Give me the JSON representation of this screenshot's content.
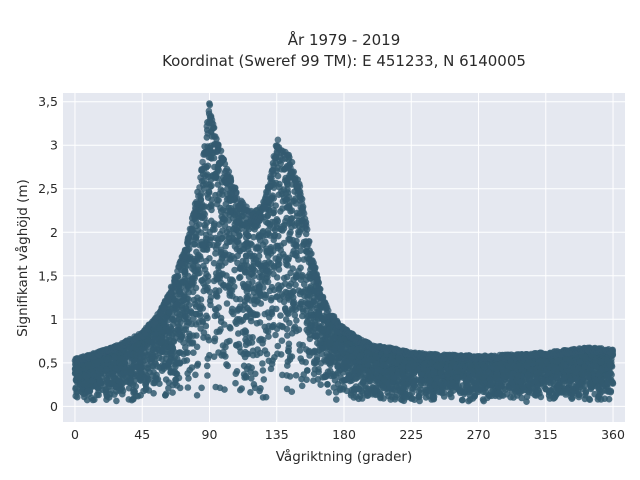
{
  "chart_data": {
    "type": "scatter",
    "title_line1": "År 1979 - 2019",
    "title_line2": "Koordinat (Sweref 99 TM): E 451233, N 6140005",
    "xlabel": "Vågriktning (grader)",
    "ylabel": "Signifikant våghöjd (m)",
    "xlim": [
      -8,
      368
    ],
    "ylim": [
      -0.18,
      3.6
    ],
    "x_ticks": [
      0,
      45,
      90,
      135,
      180,
      225,
      270,
      315,
      360
    ],
    "x_tick_labels": [
      "0",
      "45",
      "90",
      "135",
      "180",
      "225",
      "270",
      "315",
      "360"
    ],
    "y_ticks": [
      0,
      0.5,
      1,
      1.5,
      2,
      2.5,
      3,
      3.5
    ],
    "y_tick_labels": [
      "0",
      "0,5",
      "1",
      "1,5",
      "2",
      "2,5",
      "3",
      "3,5"
    ],
    "grid": true,
    "background_color": "#e5e8f0",
    "point_color": "#335a70",
    "envelope": {
      "direction": [
        0,
        15,
        30,
        45,
        55,
        60,
        65,
        70,
        75,
        80,
        85,
        88,
        90,
        92,
        95,
        100,
        105,
        110,
        115,
        120,
        125,
        130,
        135,
        140,
        145,
        150,
        155,
        160,
        165,
        170,
        175,
        180,
        190,
        200,
        210,
        225,
        240,
        270,
        300,
        315,
        330,
        345,
        360
      ],
      "max_height": [
        0.55,
        0.62,
        0.72,
        0.85,
        1.05,
        1.2,
        1.4,
        1.65,
        1.9,
        2.3,
        2.8,
        3.2,
        3.5,
        3.3,
        3.05,
        2.85,
        2.6,
        2.4,
        2.3,
        2.25,
        2.3,
        2.6,
        3.1,
        2.95,
        2.85,
        2.6,
        2.1,
        1.65,
        1.3,
        1.1,
        1.0,
        0.9,
        0.78,
        0.7,
        0.68,
        0.62,
        0.6,
        0.58,
        0.6,
        0.62,
        0.65,
        0.68,
        0.65
      ],
      "min_height": 0.05
    }
  }
}
